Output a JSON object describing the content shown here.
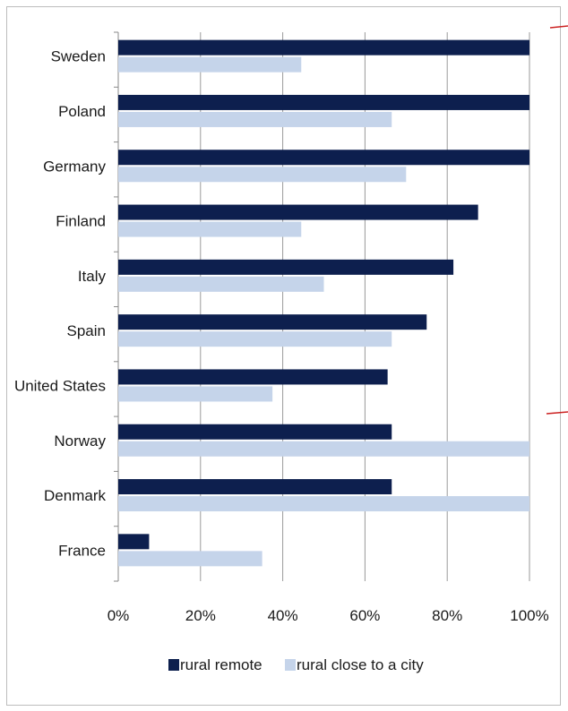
{
  "chart_data": {
    "type": "bar",
    "orientation": "horizontal",
    "categories": [
      "Sweden",
      "Poland",
      "Germany",
      "Finland",
      "Italy",
      "Spain",
      "United States",
      "Norway",
      "Denmark",
      "France"
    ],
    "series": [
      {
        "name": "rural remote",
        "color": "#0d1f4e",
        "values": [
          100,
          100,
          100,
          87.5,
          81.5,
          75,
          65.5,
          66.5,
          66.5,
          7.5
        ]
      },
      {
        "name": "rural close to a city",
        "color": "#c5d4ea",
        "values": [
          44.5,
          66.5,
          70,
          44.5,
          50,
          66.5,
          37.5,
          100,
          100,
          35
        ]
      }
    ],
    "xticks": [
      "0%",
      "20%",
      "40%",
      "60%",
      "80%",
      "100%"
    ],
    "xlim": [
      0,
      100
    ],
    "grid": true,
    "legend_position": "bottom",
    "title": "",
    "xlabel": "",
    "ylabel": ""
  }
}
